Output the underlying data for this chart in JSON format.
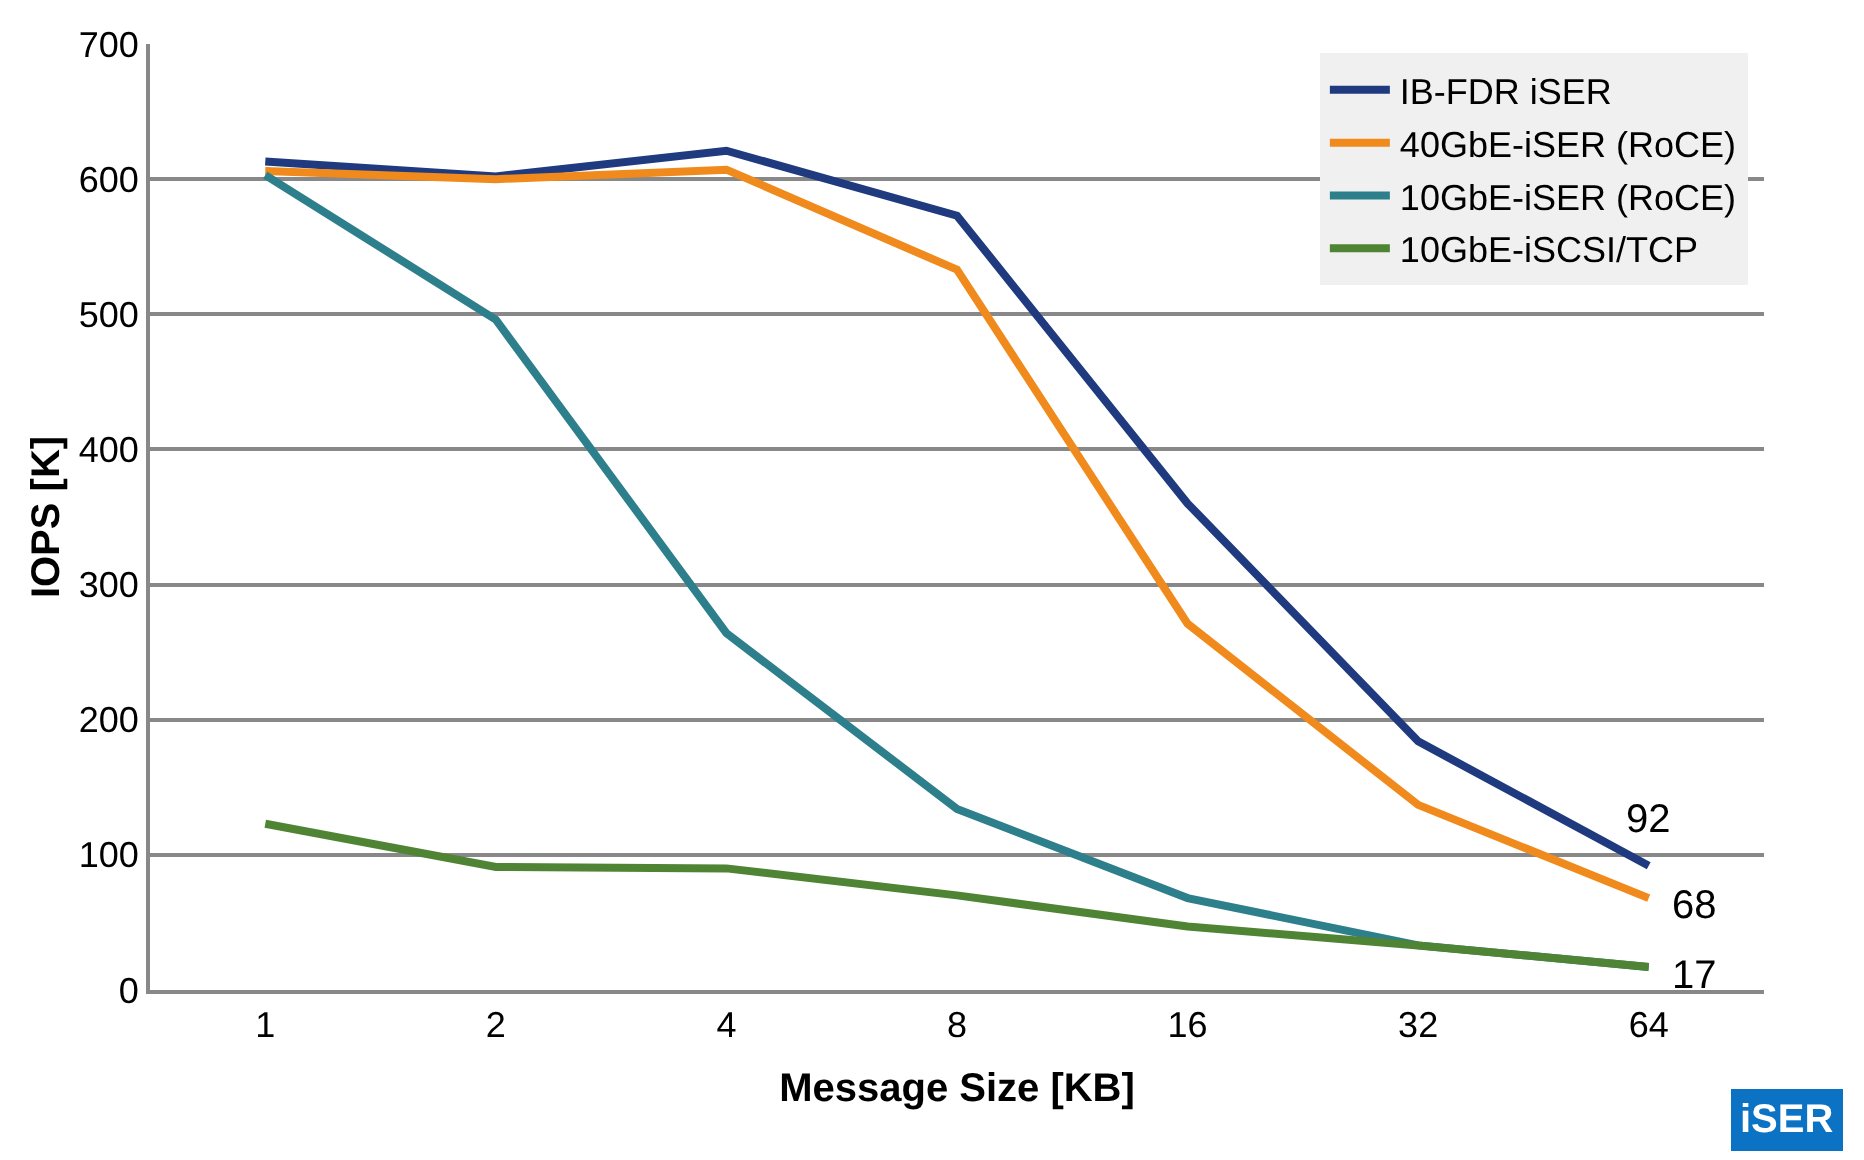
{
  "chart_data": {
    "type": "line",
    "xlabel": "Message Size [KB]",
    "ylabel": "IOPS [K]",
    "categories": [
      "1",
      "2",
      "4",
      "8",
      "16",
      "32",
      "64"
    ],
    "ylim": [
      0,
      700
    ],
    "yticks": [
      0,
      100,
      200,
      300,
      400,
      500,
      600,
      700
    ],
    "grid": "y",
    "legend": "top right",
    "marker": "none",
    "line_style": "solid",
    "series": [
      {
        "name": "IB-FDR iSER",
        "color": "#1f3a7f",
        "values": [
          613,
          602,
          621,
          573,
          360,
          184,
          92
        ],
        "value_labels": [
          null,
          null,
          null,
          null,
          null,
          null,
          "92"
        ]
      },
      {
        "name": "40GbE-iSER (RoCE)",
        "color": "#f08a1c",
        "values": [
          606,
          600,
          607,
          533,
          271,
          137,
          68
        ],
        "value_labels": [
          null,
          null,
          null,
          null,
          null,
          null,
          "68"
        ]
      },
      {
        "name": "10GbE-iSER (RoCE)",
        "color": "#2e7f8c",
        "values": [
          603,
          496,
          264,
          134,
          68,
          33,
          17
        ]
      },
      {
        "name": "10GbE-iSCSI/TCP",
        "color": "#4e8434",
        "values": [
          123,
          91,
          90,
          70,
          47,
          33,
          17
        ],
        "value_labels": [
          null,
          null,
          null,
          null,
          null,
          null,
          "17"
        ]
      }
    ],
    "annotations": [
      "iSER"
    ]
  }
}
